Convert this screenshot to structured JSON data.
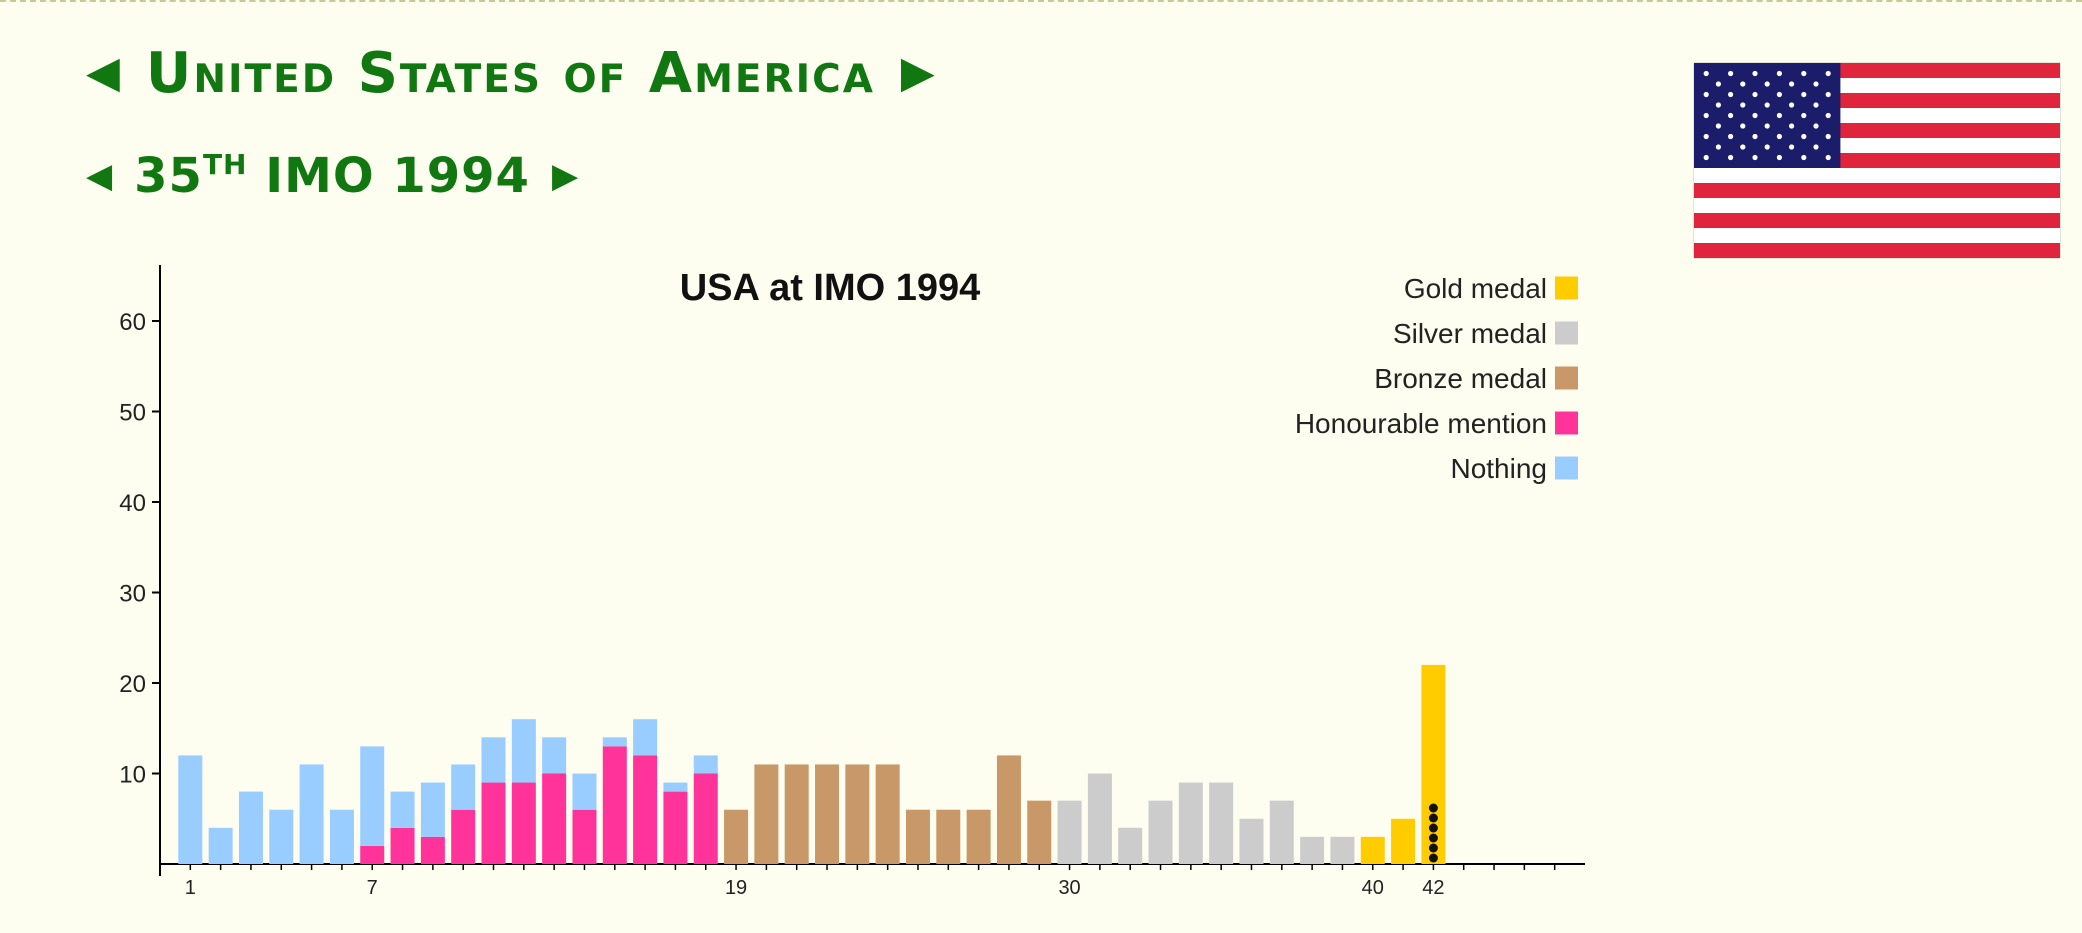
{
  "header": {
    "country_name": "United States of America",
    "prev_arrow": "◀",
    "next_arrow": "▶",
    "event_num": "35",
    "event_sup": "TH",
    "event_name": "IMO 1994",
    "event_prev_arrow": "◀",
    "event_next_arrow": "▶"
  },
  "flag": {
    "country": "United States",
    "colors": {
      "red": "#e0243b",
      "white": "#ffffff",
      "blue": "#1b1d6b"
    }
  },
  "colors": {
    "gold": "#ffcc00",
    "silver": "#cccccc",
    "bronze": "#c89868",
    "honourable": "#ff3399",
    "nothing": "#99ccff",
    "header_green": "#117711",
    "background": "#fefef0"
  },
  "chart_data": {
    "type": "bar",
    "title": "USA at IMO 1994",
    "xlabel": "",
    "ylabel": "",
    "ylim": [
      0,
      65
    ],
    "yticks": [
      10,
      20,
      30,
      40,
      50,
      60
    ],
    "xticklabels": [
      "1",
      "7",
      "19",
      "30",
      "40",
      "42"
    ],
    "x_range": [
      0,
      47
    ],
    "x": [
      1,
      2,
      3,
      4,
      5,
      6,
      7,
      8,
      9,
      10,
      11,
      12,
      13,
      14,
      15,
      16,
      17,
      18,
      19,
      20,
      21,
      22,
      23,
      24,
      25,
      26,
      27,
      28,
      29,
      30,
      31,
      32,
      33,
      34,
      35,
      36,
      37,
      38,
      39,
      40,
      41,
      42
    ],
    "series": [
      {
        "name": "Gold medal",
        "color": "#ffcc00",
        "values": [
          0,
          0,
          0,
          0,
          0,
          0,
          0,
          0,
          0,
          0,
          0,
          0,
          0,
          0,
          0,
          0,
          0,
          0,
          0,
          0,
          0,
          0,
          0,
          0,
          0,
          0,
          0,
          0,
          0,
          0,
          0,
          0,
          0,
          0,
          0,
          0,
          0,
          0,
          0,
          3,
          5,
          22
        ]
      },
      {
        "name": "Silver medal",
        "color": "#cccccc",
        "values": [
          0,
          0,
          0,
          0,
          0,
          0,
          0,
          0,
          0,
          0,
          0,
          0,
          0,
          0,
          0,
          0,
          0,
          0,
          0,
          0,
          0,
          0,
          0,
          0,
          0,
          0,
          0,
          0,
          0,
          7,
          10,
          4,
          7,
          9,
          9,
          5,
          7,
          3,
          3,
          0,
          0,
          0
        ]
      },
      {
        "name": "Bronze medal",
        "color": "#c89868",
        "values": [
          0,
          0,
          0,
          0,
          0,
          0,
          0,
          0,
          0,
          0,
          0,
          0,
          0,
          0,
          0,
          0,
          0,
          0,
          6,
          11,
          11,
          11,
          11,
          11,
          6,
          6,
          6,
          12,
          7,
          0,
          0,
          0,
          0,
          0,
          0,
          0,
          0,
          0,
          0,
          0,
          0,
          0
        ]
      },
      {
        "name": "Honourable mention",
        "color": "#ff3399",
        "values": [
          0,
          0,
          0,
          0,
          0,
          0,
          2,
          4,
          3,
          6,
          9,
          9,
          10,
          6,
          13,
          12,
          8,
          10,
          0,
          0,
          0,
          0,
          0,
          0,
          0,
          0,
          0,
          0,
          0,
          0,
          0,
          0,
          0,
          0,
          0,
          0,
          0,
          0,
          0,
          0,
          0,
          0
        ]
      },
      {
        "name": "Nothing",
        "color": "#99ccff",
        "values": [
          12,
          4,
          8,
          6,
          11,
          6,
          11,
          4,
          6,
          5,
          5,
          7,
          4,
          4,
          1,
          4,
          1,
          2,
          0,
          0,
          0,
          0,
          0,
          0,
          0,
          0,
          0,
          0,
          0,
          0,
          0,
          0,
          0,
          0,
          0,
          0,
          0,
          0,
          0,
          0,
          0,
          0
        ]
      }
    ],
    "highlighted_x": 42,
    "team_marker_count": 6,
    "legend_position": "top-right",
    "grid": false
  }
}
